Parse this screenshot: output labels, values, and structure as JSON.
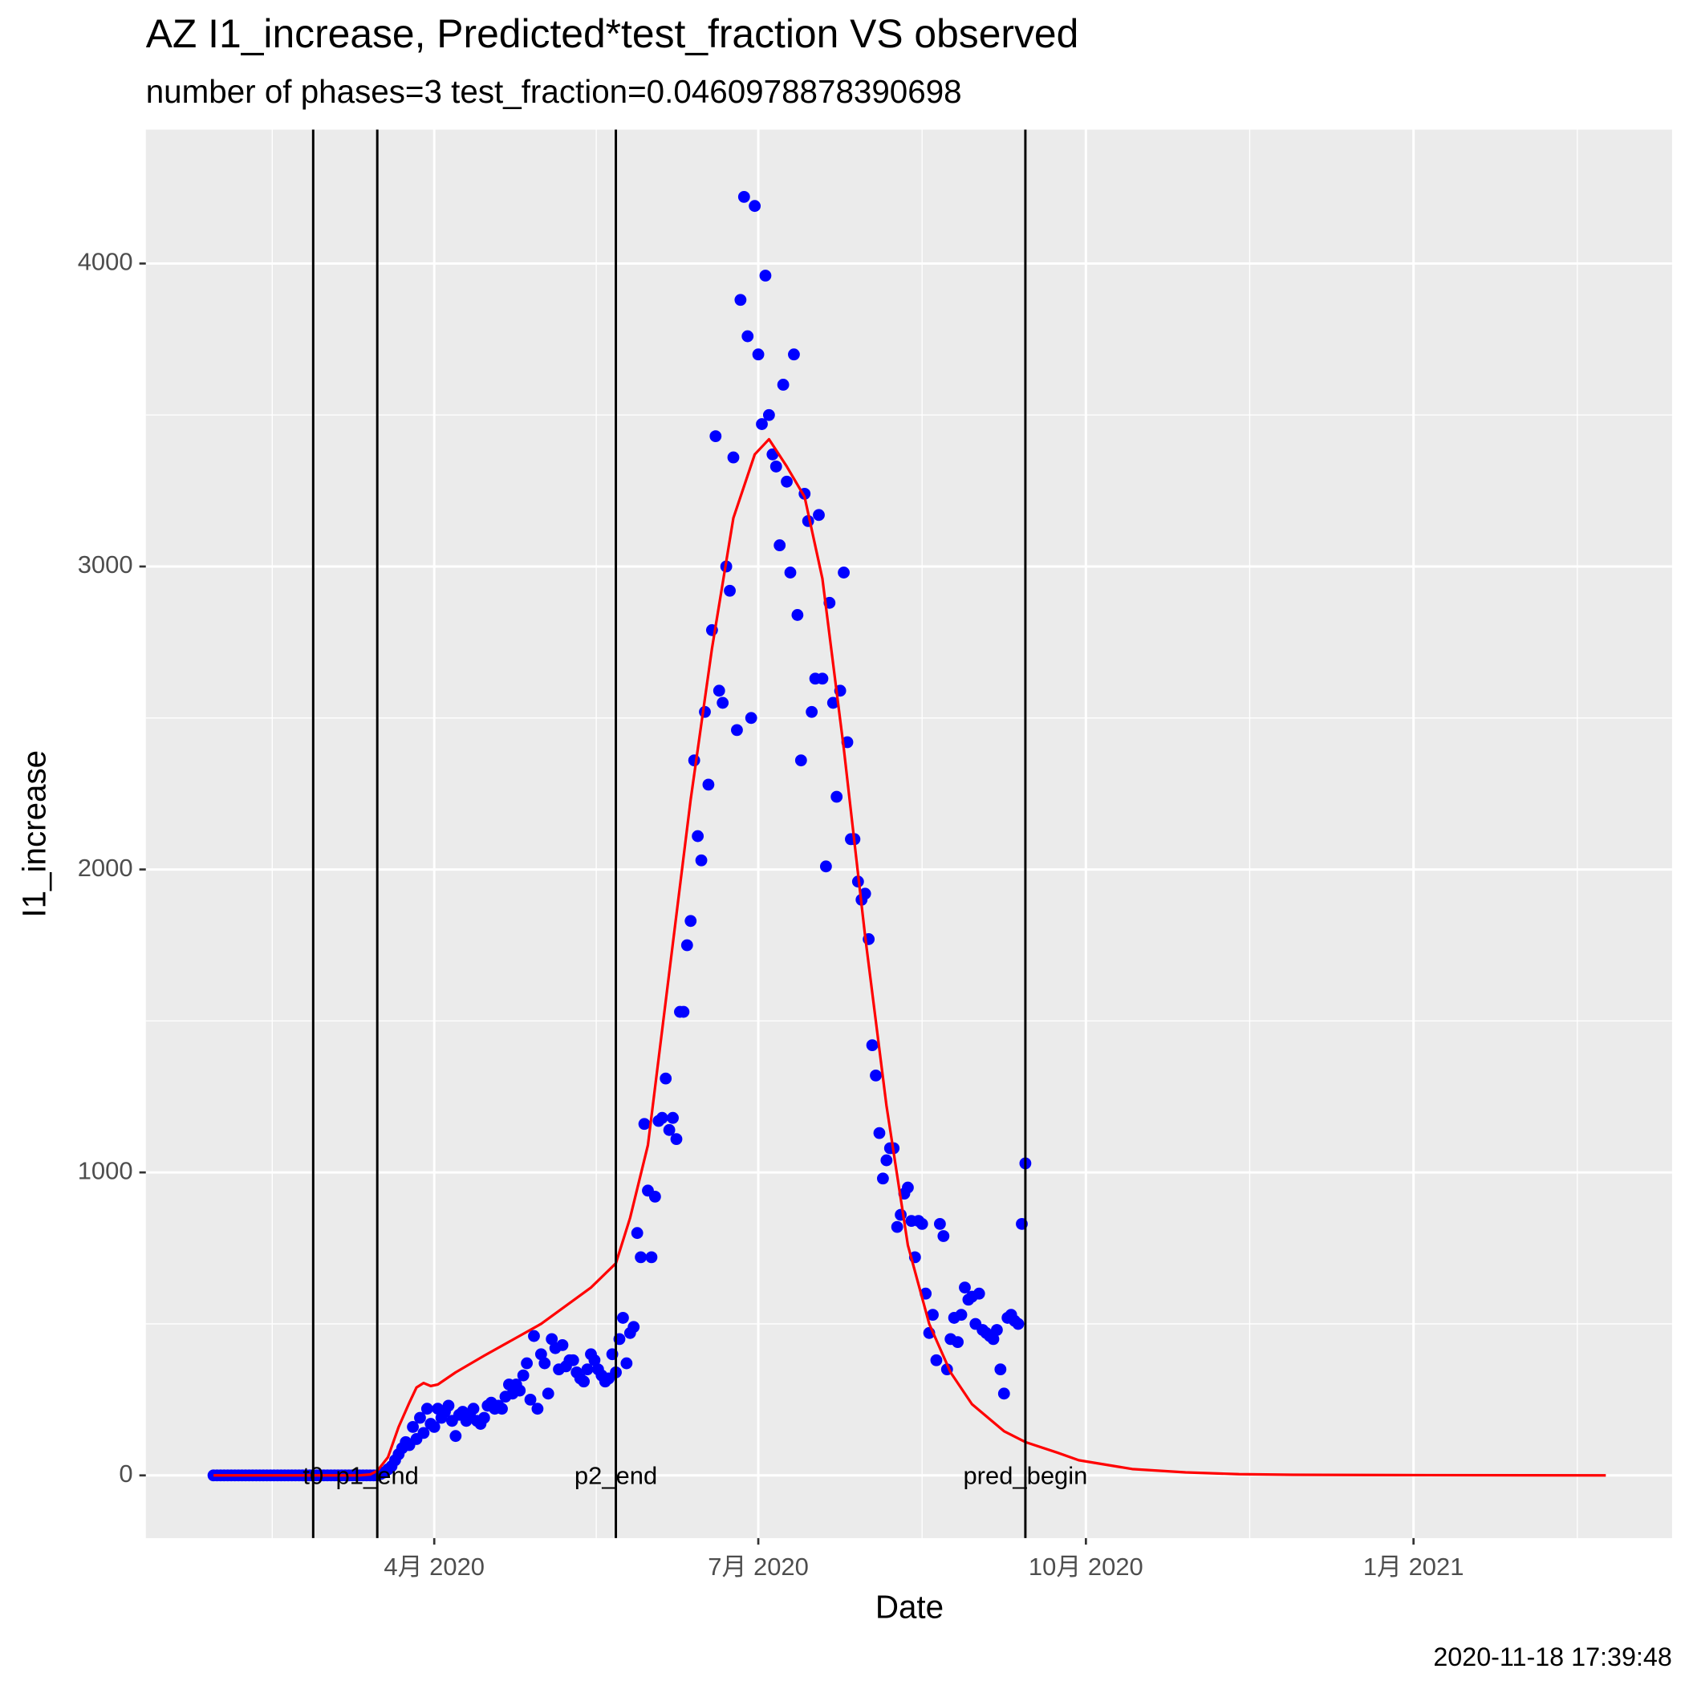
{
  "chart_data": {
    "type": "scatter",
    "title": "AZ I1_increase, Predicted*test_fraction VS observed",
    "subtitle": "number of phases=3   test_fraction=0.0460978878390698",
    "x_label": "Date",
    "y_label": "I1_increase",
    "caption": "2020-11-18 17:39:48",
    "xlim": [
      10,
      438.6
    ],
    "ylim": [
      -207,
      4442
    ],
    "xticks": [
      {
        "value": 91,
        "label": "4月 2020"
      },
      {
        "value": 182,
        "label": "7月 2020"
      },
      {
        "value": 274,
        "label": "10月 2020"
      },
      {
        "value": 366,
        "label": "1月 2021"
      }
    ],
    "yticks": [
      0,
      1000,
      2000,
      3000,
      4000
    ],
    "grid": true,
    "vlines": [
      {
        "label": "t0",
        "x": 57
      },
      {
        "label": "p1_end",
        "x": 75
      },
      {
        "label": "p2_end",
        "x": 142
      },
      {
        "label": "pred_begin",
        "x": 257
      }
    ],
    "series": [
      {
        "type": "scatter",
        "color": "#0000ff",
        "x": [
          29,
          30,
          31,
          32,
          33,
          34,
          35,
          36,
          37,
          38,
          39,
          40,
          41,
          42,
          43,
          44,
          45,
          46,
          47,
          48,
          49,
          50,
          51,
          52,
          53,
          54,
          55,
          56,
          57,
          58,
          59,
          60,
          61,
          62,
          63,
          64,
          65,
          66,
          67,
          68,
          69,
          70,
          71,
          72,
          73,
          74,
          75,
          76,
          77,
          78,
          79,
          80,
          81,
          82,
          83,
          84,
          85,
          86,
          87,
          88,
          89,
          90,
          91,
          92,
          93,
          94,
          95,
          96,
          97,
          98,
          99,
          100,
          101,
          102,
          103,
          104,
          105,
          106,
          107,
          108,
          109,
          110,
          111,
          112,
          113,
          114,
          115,
          116,
          117,
          118,
          119,
          120,
          121,
          122,
          123,
          124,
          125,
          126,
          127,
          128,
          129,
          130,
          131,
          132,
          133,
          134,
          135,
          136,
          137,
          138,
          139,
          140,
          141,
          142,
          143,
          144,
          145,
          146,
          147,
          148,
          149,
          150,
          151,
          152,
          153,
          154,
          155,
          156,
          157,
          158,
          159,
          160,
          161,
          162,
          163,
          164,
          165,
          166,
          167,
          168,
          169,
          170,
          171,
          172,
          173,
          174,
          175,
          176,
          177,
          178,
          179,
          180,
          181,
          182,
          183,
          184,
          185,
          186,
          187,
          188,
          189,
          190,
          191,
          192,
          193,
          194,
          195,
          196,
          197,
          198,
          199,
          200,
          201,
          202,
          203,
          204,
          205,
          206,
          207,
          208,
          209,
          210,
          211,
          212,
          213,
          214,
          215,
          216,
          217,
          218,
          219,
          220,
          221,
          222,
          223,
          224,
          225,
          226,
          227,
          228,
          229,
          230,
          231,
          232,
          233,
          234,
          235,
          236,
          237,
          238,
          239,
          240,
          241,
          242,
          243,
          244,
          245,
          246,
          247,
          248,
          249,
          250,
          251,
          252,
          253,
          254,
          255,
          256,
          257
        ],
        "values": [
          0,
          0,
          0,
          0,
          0,
          0,
          0,
          0,
          0,
          0,
          0,
          0,
          0,
          0,
          0,
          0,
          0,
          0,
          0,
          0,
          0,
          0,
          0,
          0,
          0,
          0,
          0,
          0,
          0,
          0,
          0,
          0,
          0,
          0,
          0,
          0,
          0,
          0,
          0,
          0,
          0,
          0,
          0,
          0,
          0,
          0,
          0,
          5,
          10,
          20,
          30,
          50,
          70,
          90,
          110,
          100,
          160,
          120,
          190,
          140,
          220,
          170,
          160,
          220,
          190,
          210,
          230,
          180,
          130,
          200,
          210,
          180,
          200,
          220,
          180,
          170,
          190,
          230,
          240,
          220,
          230,
          220,
          260,
          300,
          270,
          300,
          280,
          330,
          370,
          250,
          460,
          220,
          400,
          370,
          270,
          450,
          420,
          350,
          430,
          360,
          380,
          380,
          340,
          320,
          310,
          350,
          400,
          380,
          350,
          330,
          310,
          320,
          400,
          340,
          450,
          520,
          370,
          470,
          490,
          800,
          720,
          1160,
          940,
          720,
          920,
          1170,
          1180,
          1310,
          1140,
          1180,
          1110,
          1530,
          1530,
          1750,
          1830,
          2360,
          2110,
          2030,
          2520,
          2280,
          2790,
          3430,
          2590,
          2550,
          3000,
          2920,
          3360,
          2460,
          3880,
          4220,
          3760,
          2500,
          4190,
          3700,
          3470,
          3960,
          3500,
          3370,
          3330,
          3070,
          3600,
          3280,
          2980,
          3700,
          2840,
          2360,
          3240,
          3150,
          2520,
          2630,
          3170,
          2630,
          2010,
          2880,
          2550,
          2240,
          2590,
          2980,
          2420,
          2100,
          2100,
          1960,
          1900,
          1920,
          1770,
          1420,
          1320,
          1130,
          980,
          1040,
          1080,
          1080,
          820,
          860,
          930,
          950,
          840,
          720,
          840,
          830,
          600,
          470,
          530,
          380,
          830,
          790,
          350,
          450,
          520,
          440,
          530,
          620,
          580,
          590,
          500,
          600,
          480,
          470,
          460,
          450,
          480,
          350,
          270,
          520,
          530,
          510,
          500,
          830,
          1030
        ]
      },
      {
        "type": "line",
        "color": "#ff0000",
        "x": [
          29,
          70,
          73,
          75,
          78,
          81,
          84,
          86,
          88,
          90,
          92,
          97,
          105,
          121,
          135,
          142,
          146,
          151,
          157,
          163,
          169,
          175,
          181,
          185,
          190,
          195,
          200,
          206,
          212,
          218,
          224,
          230,
          236,
          242,
          251,
          257,
          266,
          272,
          287,
          302,
          317,
          332,
          362,
          420
        ],
        "values": [
          0,
          0,
          3,
          15,
          60,
          160,
          240,
          290,
          305,
          295,
          300,
          340,
          395,
          500,
          620,
          700,
          850,
          1090,
          1660,
          2230,
          2730,
          3160,
          3370,
          3420,
          3330,
          3230,
          2960,
          2400,
          1780,
          1220,
          760,
          500,
          340,
          235,
          146,
          110,
          75,
          50,
          21,
          10,
          4,
          2,
          1,
          0
        ]
      }
    ]
  }
}
